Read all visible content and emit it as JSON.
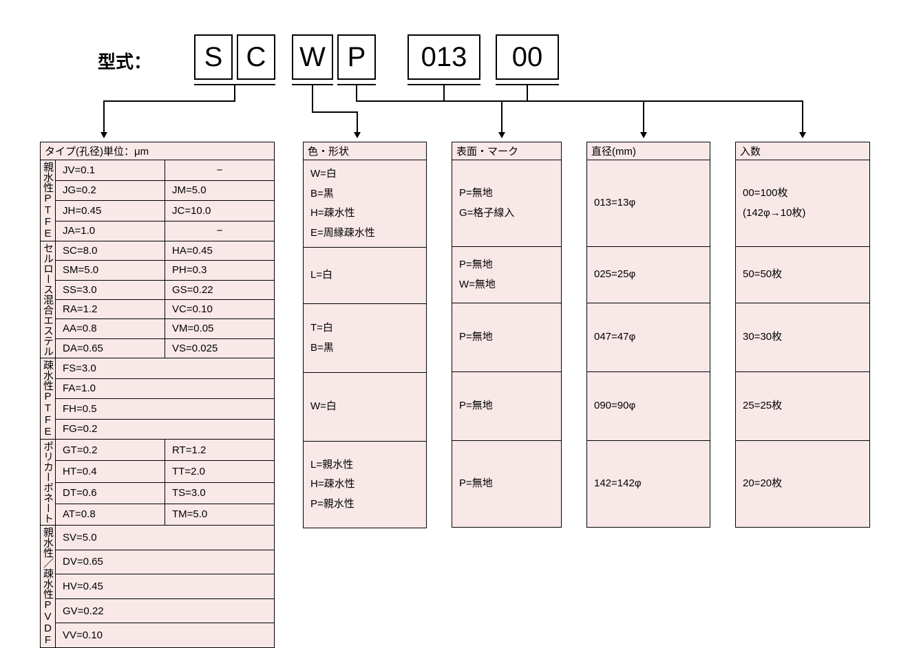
{
  "model_label": "型式：",
  "codes": {
    "b1": "S",
    "b2": "C",
    "b3": "W",
    "b4": "P",
    "b5": "013",
    "b6": "00"
  },
  "headers": {
    "type": "タイプ(孔径)単位：μm",
    "color": "色・形状",
    "surface": "表面・マーク",
    "diameter": "直径(mm)",
    "count": "入数"
  },
  "type_table": {
    "cat1": "親水性PTFE",
    "cat2": "セルロース混合エステル",
    "cat3": "疎水性PTFE",
    "cat4": "ポリカーボネート",
    "cat5": "親水性／疎水性PVDF",
    "r1a": "JV=0.1",
    "r1b": "−",
    "r2a": "JG=0.2",
    "r2b": "JM=5.0",
    "r3a": "JH=0.45",
    "r3b": "JC=10.0",
    "r4a": "JA=1.0",
    "r4b": "−",
    "r5a": "SC=8.0",
    "r5b": "HA=0.45",
    "r6a": "SM=5.0",
    "r6b": "PH=0.3",
    "r7a": "SS=3.0",
    "r7b": "GS=0.22",
    "r8a": "RA=1.2",
    "r8b": "VC=0.10",
    "r9a": "AA=0.8",
    "r9b": "VM=0.05",
    "r10a": "DA=0.65",
    "r10b": "VS=0.025",
    "r11": "FS=3.0",
    "r12": "FA=1.0",
    "r13": "FH=0.5",
    "r14": "FG=0.2",
    "r15a": "GT=0.2",
    "r15b": "RT=1.2",
    "r16a": "HT=0.4",
    "r16b": "TT=2.0",
    "r17a": "DT=0.6",
    "r17b": "TS=3.0",
    "r18a": "AT=0.8",
    "r18b": "TM=5.0",
    "r19": "SV=5.0",
    "r20": "DV=0.65",
    "r21": "HV=0.45",
    "r22": "GV=0.22",
    "r23": "VV=0.10"
  },
  "color_table": {
    "c1": "W=白\nB=黒\nH=疎水性\nE=周縁疎水性",
    "c2": "L=白",
    "c3": "T=白\nB=黒",
    "c4": "W=白",
    "c5": "L=親水性\nH=疎水性\nP=親水性"
  },
  "surface_table": {
    "s1": "P=無地\nG=格子線入",
    "s2": "P=無地\nW=無地",
    "s3": "P=無地",
    "s4": "P=無地",
    "s5": "P=無地"
  },
  "diameter_table": {
    "d1": "013=13φ",
    "d2": "025=25φ",
    "d3": "047=47φ",
    "d4": "090=90φ",
    "d5": "142=142φ"
  },
  "count_table": {
    "n1": "00=100枚\n(142φ→10枚)",
    "n2": "50=50枚",
    "n3": "30=30枚",
    "n4": "25=25枚",
    "n5": "20=20枚"
  },
  "layout": {
    "table_bg": "#f9e8e8",
    "border_color": "#000000",
    "page_bg": "#ffffff"
  }
}
